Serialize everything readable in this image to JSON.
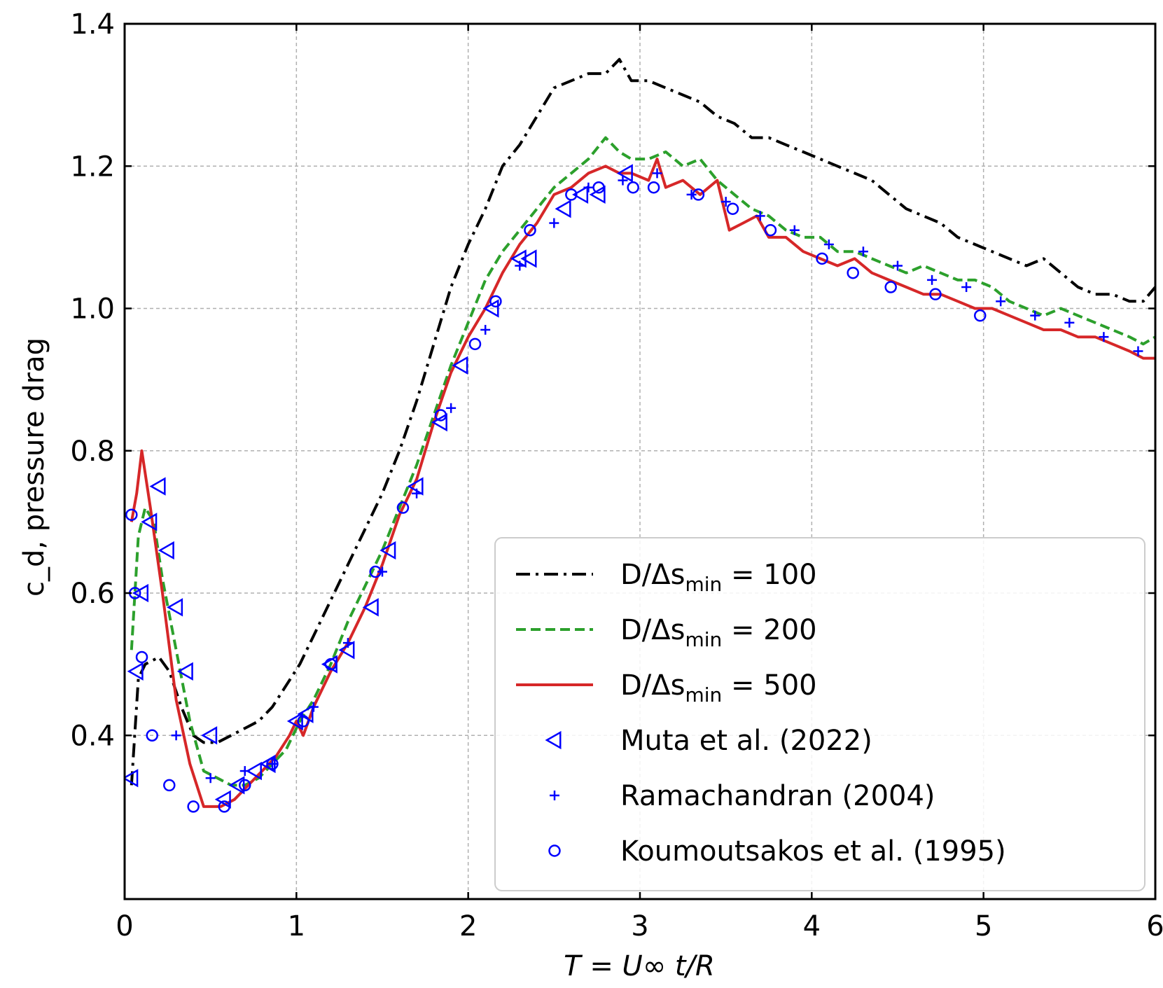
{
  "chart_data": {
    "type": "line",
    "title": "",
    "xlabel": "T = U∞ t/R",
    "ylabel": "c_d, pressure drag",
    "xlim": [
      0,
      6
    ],
    "ylim": [
      0.17,
      1.4
    ],
    "x_ticks": [
      0,
      1,
      2,
      3,
      4,
      5,
      6
    ],
    "y_ticks": [
      0.4,
      0.6,
      0.8,
      1.0,
      1.2,
      1.4
    ],
    "x_tick_labels": [
      "0",
      "1",
      "2",
      "3",
      "4",
      "5",
      "6"
    ],
    "y_tick_labels": [
      "0.4",
      "0.6",
      "0.8",
      "1.0",
      "1.2",
      "1.4"
    ],
    "grid": true,
    "legend_position": "bottom-right",
    "series": [
      {
        "name": "D/Δs_min = 100",
        "legend_main": "D/Δs",
        "legend_sub": "min",
        "legend_tail": " = 100",
        "color": "#000000",
        "style": "dashdot",
        "x": [
          0.04,
          0.08,
          0.12,
          0.2,
          0.26,
          0.33,
          0.4,
          0.46,
          0.54,
          0.62,
          0.7,
          0.78,
          0.86,
          0.94,
          1.02,
          1.1,
          1.2,
          1.3,
          1.4,
          1.5,
          1.6,
          1.7,
          1.8,
          1.9,
          2.0,
          2.1,
          2.2,
          2.3,
          2.4,
          2.5,
          2.6,
          2.7,
          2.8,
          2.88,
          2.95,
          3.05,
          3.15,
          3.25,
          3.35,
          3.45,
          3.55,
          3.65,
          3.75,
          3.85,
          3.95,
          4.05,
          4.15,
          4.25,
          4.35,
          4.45,
          4.55,
          4.65,
          4.75,
          4.85,
          4.95,
          5.05,
          5.15,
          5.25,
          5.35,
          5.45,
          5.55,
          5.65,
          5.75,
          5.85,
          5.93,
          6.0
        ],
        "y": [
          0.33,
          0.48,
          0.5,
          0.51,
          0.49,
          0.44,
          0.4,
          0.39,
          0.39,
          0.4,
          0.41,
          0.42,
          0.44,
          0.47,
          0.5,
          0.54,
          0.59,
          0.64,
          0.69,
          0.74,
          0.8,
          0.87,
          0.95,
          1.03,
          1.09,
          1.14,
          1.2,
          1.23,
          1.27,
          1.31,
          1.32,
          1.33,
          1.33,
          1.35,
          1.32,
          1.32,
          1.31,
          1.3,
          1.29,
          1.27,
          1.26,
          1.24,
          1.24,
          1.23,
          1.22,
          1.21,
          1.2,
          1.19,
          1.18,
          1.16,
          1.14,
          1.13,
          1.12,
          1.1,
          1.09,
          1.08,
          1.07,
          1.06,
          1.07,
          1.05,
          1.03,
          1.02,
          1.02,
          1.01,
          1.01,
          1.03
        ]
      },
      {
        "name": "D/Δs_min = 200",
        "legend_main": "D/Δs",
        "legend_sub": "min",
        "legend_tail": " = 200",
        "color": "#2ca02c",
        "style": "dashed",
        "x": [
          0.04,
          0.08,
          0.12,
          0.17,
          0.22,
          0.3,
          0.38,
          0.46,
          0.54,
          0.62,
          0.7,
          0.78,
          0.86,
          0.94,
          1.02,
          1.1,
          1.2,
          1.3,
          1.4,
          1.5,
          1.6,
          1.7,
          1.8,
          1.9,
          2.0,
          2.1,
          2.2,
          2.3,
          2.4,
          2.5,
          2.6,
          2.7,
          2.8,
          2.88,
          2.95,
          3.05,
          3.15,
          3.25,
          3.35,
          3.45,
          3.55,
          3.65,
          3.75,
          3.85,
          3.95,
          4.05,
          4.15,
          4.25,
          4.35,
          4.45,
          4.55,
          4.65,
          4.75,
          4.85,
          4.95,
          5.05,
          5.15,
          5.25,
          5.35,
          5.45,
          5.55,
          5.65,
          5.75,
          5.85,
          5.93,
          6.0
        ],
        "y": [
          0.52,
          0.68,
          0.72,
          0.7,
          0.62,
          0.52,
          0.42,
          0.35,
          0.34,
          0.33,
          0.33,
          0.34,
          0.36,
          0.38,
          0.42,
          0.45,
          0.5,
          0.56,
          0.61,
          0.66,
          0.72,
          0.78,
          0.85,
          0.92,
          0.98,
          1.04,
          1.08,
          1.11,
          1.14,
          1.17,
          1.19,
          1.21,
          1.24,
          1.22,
          1.21,
          1.21,
          1.22,
          1.2,
          1.21,
          1.18,
          1.16,
          1.14,
          1.13,
          1.11,
          1.1,
          1.1,
          1.08,
          1.08,
          1.07,
          1.06,
          1.05,
          1.06,
          1.05,
          1.04,
          1.04,
          1.03,
          1.01,
          1.0,
          0.99,
          1.0,
          0.99,
          0.98,
          0.97,
          0.96,
          0.95,
          0.96
        ]
      },
      {
        "name": "D/Δs_min = 500",
        "legend_main": "D/Δs",
        "legend_sub": "min",
        "legend_tail": " = 500",
        "color": "#d62728",
        "style": "solid",
        "x": [
          0.04,
          0.07,
          0.1,
          0.15,
          0.22,
          0.3,
          0.38,
          0.46,
          0.5,
          0.56,
          0.64,
          0.72,
          0.8,
          0.88,
          0.96,
          1.0,
          1.04,
          1.1,
          1.2,
          1.3,
          1.4,
          1.5,
          1.6,
          1.7,
          1.8,
          1.9,
          2.0,
          2.1,
          2.2,
          2.3,
          2.4,
          2.5,
          2.6,
          2.7,
          2.8,
          2.88,
          2.95,
          3.05,
          3.1,
          3.15,
          3.25,
          3.35,
          3.45,
          3.52,
          3.6,
          3.68,
          3.75,
          3.85,
          3.95,
          4.05,
          4.15,
          4.25,
          4.35,
          4.45,
          4.55,
          4.65,
          4.75,
          4.85,
          4.95,
          5.05,
          5.15,
          5.25,
          5.35,
          5.45,
          5.55,
          5.65,
          5.75,
          5.85,
          5.93,
          6.0
        ],
        "y": [
          0.7,
          0.74,
          0.8,
          0.72,
          0.6,
          0.45,
          0.36,
          0.3,
          0.3,
          0.3,
          0.31,
          0.33,
          0.35,
          0.37,
          0.4,
          0.42,
          0.4,
          0.44,
          0.49,
          0.53,
          0.58,
          0.64,
          0.71,
          0.76,
          0.84,
          0.91,
          0.96,
          1.0,
          1.05,
          1.09,
          1.12,
          1.16,
          1.17,
          1.19,
          1.2,
          1.19,
          1.19,
          1.18,
          1.21,
          1.17,
          1.18,
          1.16,
          1.18,
          1.11,
          1.12,
          1.13,
          1.1,
          1.1,
          1.08,
          1.07,
          1.06,
          1.07,
          1.05,
          1.04,
          1.03,
          1.02,
          1.02,
          1.01,
          1.0,
          1.0,
          0.99,
          0.98,
          0.97,
          0.97,
          0.96,
          0.96,
          0.95,
          0.94,
          0.93,
          0.93
        ]
      },
      {
        "name": "Muta et al. (2022)",
        "color": "#0000ff",
        "style": "marker",
        "marker": "triangle-left",
        "x": [
          0.04,
          0.07,
          0.1,
          0.15,
          0.2,
          0.25,
          0.3,
          0.36,
          0.5,
          0.58,
          0.66,
          0.76,
          0.84,
          1.0,
          1.06,
          1.2,
          1.3,
          1.44,
          1.54,
          1.7,
          1.84,
          1.96,
          2.14,
          2.3,
          2.36,
          2.56,
          2.66,
          2.76,
          2.92
        ],
        "y": [
          0.34,
          0.49,
          0.6,
          0.7,
          0.75,
          0.66,
          0.58,
          0.49,
          0.4,
          0.31,
          0.33,
          0.35,
          0.36,
          0.42,
          0.43,
          0.5,
          0.52,
          0.58,
          0.66,
          0.75,
          0.84,
          0.92,
          1.0,
          1.07,
          1.07,
          1.14,
          1.16,
          1.16,
          1.19
        ]
      },
      {
        "name": "Ramachandran (2004)",
        "color": "#0000ff",
        "style": "marker",
        "marker": "plus",
        "x": [
          0.3,
          0.5,
          0.7,
          0.86,
          1.1,
          1.3,
          1.5,
          1.7,
          1.9,
          2.1,
          2.3,
          2.5,
          2.7,
          2.9,
          3.1,
          3.3,
          3.5,
          3.7,
          3.9,
          4.1,
          4.3,
          4.5,
          4.7,
          4.9,
          5.1,
          5.3,
          5.5,
          5.7,
          5.9
        ],
        "y": [
          0.4,
          0.34,
          0.35,
          0.36,
          0.44,
          0.53,
          0.63,
          0.74,
          0.86,
          0.97,
          1.06,
          1.12,
          1.17,
          1.18,
          1.19,
          1.16,
          1.15,
          1.13,
          1.11,
          1.09,
          1.08,
          1.06,
          1.04,
          1.03,
          1.01,
          0.99,
          0.98,
          0.96,
          0.94
        ]
      },
      {
        "name": "Koumoutsakos et al. (1995)",
        "color": "#0000ff",
        "style": "marker",
        "marker": "circle",
        "x": [
          0.04,
          0.06,
          0.1,
          0.16,
          0.26,
          0.4,
          0.58,
          0.7,
          0.86,
          1.04,
          1.2,
          1.46,
          1.62,
          1.84,
          2.04,
          2.16,
          2.36,
          2.6,
          2.76,
          2.96,
          3.08,
          3.34,
          3.54,
          3.76,
          4.06,
          4.24,
          4.46,
          4.72,
          4.98
        ],
        "y": [
          0.71,
          0.6,
          0.51,
          0.4,
          0.33,
          0.3,
          0.3,
          0.33,
          0.36,
          0.42,
          0.5,
          0.63,
          0.72,
          0.85,
          0.95,
          1.01,
          1.11,
          1.16,
          1.17,
          1.17,
          1.17,
          1.16,
          1.14,
          1.11,
          1.07,
          1.05,
          1.03,
          1.02,
          0.99
        ]
      }
    ]
  }
}
